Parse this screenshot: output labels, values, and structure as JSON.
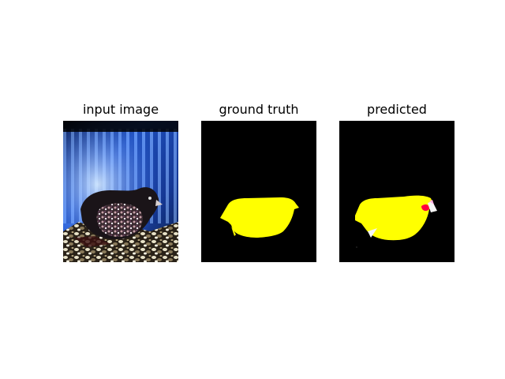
{
  "panels": [
    {
      "title": "input image"
    },
    {
      "title": "ground truth"
    },
    {
      "title": "predicted"
    }
  ],
  "colors": {
    "background": "#ffffff",
    "mask_background": "#000000",
    "bird_mask": "#ffff00",
    "predicted_extra_red": "#ff0040",
    "predicted_extra_pink": "#ffb0e0",
    "predicted_extra_white": "#f5f5f5"
  }
}
